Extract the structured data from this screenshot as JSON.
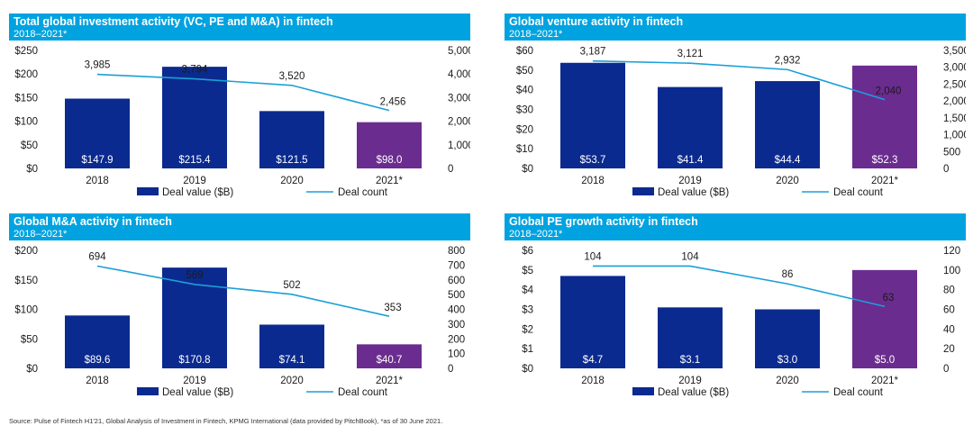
{
  "colors": {
    "header": "#00a3e0",
    "bar": "#0b2a8f",
    "bar_highlight": "#6b2c8f",
    "line": "#1aa0d8"
  },
  "legend": {
    "deal_value": "Deal value ($B)",
    "deal_count": "Deal count"
  },
  "panels": [
    {
      "title": "Total global investment activity (VC, PE and M&A) in fintech",
      "subtitle": "2018–2021*"
    },
    {
      "title": "Global venture activity in fintech",
      "subtitle": "2018–2021*"
    },
    {
      "title": "Global M&A activity in fintech",
      "subtitle": "2018–2021*"
    },
    {
      "title": "Global PE growth activity in fintech",
      "subtitle": "2018–2021*"
    }
  ],
  "source": "Source: Pulse of Fintech H1'21, Global Analysis of Investment in Fintech, KPMG International (data provided by PitchBook), *as of 30 June 2021.",
  "chart_data": [
    {
      "type": "bar",
      "categories": [
        "2018",
        "2019",
        "2020",
        "2021*"
      ],
      "series": [
        {
          "name": "Deal value ($B)",
          "type": "bar",
          "axis": "left",
          "values": [
            147.9,
            215.4,
            121.5,
            98.0
          ],
          "labels": [
            "$147.9",
            "$215.4",
            "$121.5",
            "$98.0"
          ]
        },
        {
          "name": "Deal count",
          "type": "line",
          "axis": "right",
          "values": [
            3985,
            3794,
            3520,
            2456
          ],
          "labels": [
            "3,985",
            "3,794",
            "3,520",
            "2,456"
          ]
        }
      ],
      "ylim": [
        0,
        250
      ],
      "yticks": [
        "$0",
        "$50",
        "$100",
        "$150",
        "$200",
        "$250"
      ],
      "y2lim": [
        0,
        5000
      ],
      "y2ticks": [
        "0",
        "1,000",
        "2,000",
        "3,000",
        "4,000",
        "5,000"
      ],
      "highlight_last": true
    },
    {
      "type": "bar",
      "categories": [
        "2018",
        "2019",
        "2020",
        "2021*"
      ],
      "series": [
        {
          "name": "Deal value ($B)",
          "type": "bar",
          "axis": "left",
          "values": [
            53.7,
            41.4,
            44.4,
            52.3
          ],
          "labels": [
            "$53.7",
            "$41.4",
            "$44.4",
            "$52.3"
          ]
        },
        {
          "name": "Deal count",
          "type": "line",
          "axis": "right",
          "values": [
            3187,
            3121,
            2932,
            2040
          ],
          "labels": [
            "3,187",
            "3,121",
            "2,932",
            "2,040"
          ]
        }
      ],
      "ylim": [
        0,
        60
      ],
      "yticks": [
        "$0",
        "$10",
        "$20",
        "$30",
        "$40",
        "$50",
        "$60"
      ],
      "y2lim": [
        0,
        3500
      ],
      "y2ticks": [
        "0",
        "500",
        "1,000",
        "1,500",
        "2,000",
        "2,500",
        "3,000",
        "3,500"
      ],
      "highlight_last": true
    },
    {
      "type": "bar",
      "categories": [
        "2018",
        "2019",
        "2020",
        "2021*"
      ],
      "series": [
        {
          "name": "Deal value ($B)",
          "type": "bar",
          "axis": "left",
          "values": [
            89.6,
            170.8,
            74.1,
            40.7
          ],
          "labels": [
            "$89.6",
            "$170.8",
            "$74.1",
            "$40.7"
          ]
        },
        {
          "name": "Deal count",
          "type": "line",
          "axis": "right",
          "values": [
            694,
            569,
            502,
            353
          ],
          "labels": [
            "694",
            "569",
            "502",
            "353"
          ]
        }
      ],
      "ylim": [
        0,
        200
      ],
      "yticks": [
        "$0",
        "$50",
        "$100",
        "$150",
        "$200"
      ],
      "y2lim": [
        0,
        800
      ],
      "y2ticks": [
        "0",
        "100",
        "200",
        "300",
        "400",
        "500",
        "600",
        "700",
        "800"
      ],
      "highlight_last": true
    },
    {
      "type": "bar",
      "categories": [
        "2018",
        "2019",
        "2020",
        "2021*"
      ],
      "series": [
        {
          "name": "Deal value ($B)",
          "type": "bar",
          "axis": "left",
          "values": [
            4.7,
            3.1,
            3.0,
            5.0
          ],
          "labels": [
            "$4.7",
            "$3.1",
            "$3.0",
            "$5.0"
          ]
        },
        {
          "name": "Deal count",
          "type": "line",
          "axis": "right",
          "values": [
            104,
            104,
            86,
            63
          ],
          "labels": [
            "104",
            "104",
            "86",
            "63"
          ]
        }
      ],
      "ylim": [
        0,
        6
      ],
      "yticks": [
        "$0",
        "$1",
        "$2",
        "$3",
        "$4",
        "$5",
        "$6"
      ],
      "y2lim": [
        0,
        120
      ],
      "y2ticks": [
        "0",
        "20",
        "40",
        "60",
        "80",
        "100",
        "120"
      ],
      "highlight_last": true
    }
  ]
}
